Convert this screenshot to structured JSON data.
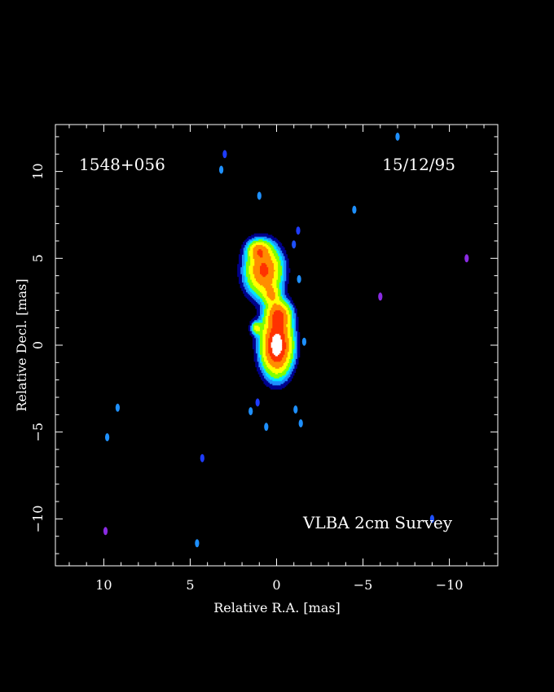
{
  "chart_data": {
    "type": "heatmap",
    "title": "",
    "source_name": "1548+056",
    "date": "15/12/95",
    "survey": "VLBA 2cm Survey",
    "xlabel": "Relative R.A. [mas]",
    "ylabel": "Relative Decl. [mas]",
    "xlim": [
      12.8,
      -12.8
    ],
    "ylim": [
      -12.7,
      12.7
    ],
    "x_reversed": true,
    "x_ticks": [
      10,
      5,
      0,
      -5,
      -10
    ],
    "y_ticks": [
      -10,
      -5,
      0,
      5,
      10
    ],
    "x_tick_labels": [
      "10",
      "5",
      "0",
      "−5",
      "−10"
    ],
    "y_tick_labels": [
      "−10",
      "−5",
      "0",
      "5",
      "10"
    ],
    "minor_tick_step": 1,
    "grid": false,
    "colormap": [
      "#00008b",
      "#1e90ff",
      "#00e5ff",
      "#7fff00",
      "#ffff00",
      "#ff8c00",
      "#ff3300",
      "#ffffff"
    ],
    "components": [
      {
        "name": "core",
        "x": 0.0,
        "y": 0.0,
        "sigma_x": 0.55,
        "sigma_y": 1.05,
        "peak": 1.0
      },
      {
        "name": "core-extension",
        "x": -0.1,
        "y": 1.8,
        "sigma_x": 0.45,
        "sigma_y": 0.5,
        "peak": 0.55
      },
      {
        "name": "jet-blob",
        "x": 0.75,
        "y": 4.3,
        "sigma_x": 0.65,
        "sigma_y": 0.9,
        "peak": 0.7
      },
      {
        "name": "jet-tail",
        "x": 1.05,
        "y": 5.5,
        "sigma_x": 0.4,
        "sigma_y": 0.35,
        "peak": 0.4
      },
      {
        "name": "bridge",
        "x": 0.3,
        "y": 2.9,
        "sigma_x": 0.3,
        "sigma_y": 0.35,
        "peak": 0.32
      },
      {
        "name": "west-knot",
        "x": 1.2,
        "y": 1.0,
        "sigma_x": 0.2,
        "sigma_y": 0.25,
        "peak": 0.3
      }
    ],
    "noise_spots": [
      {
        "x": 3.2,
        "y": 10.1,
        "c": "#1e90ff"
      },
      {
        "x": 3.0,
        "y": 11.0,
        "c": "#1e3cff"
      },
      {
        "x": 1.0,
        "y": 8.6,
        "c": "#1e90ff"
      },
      {
        "x": -7.0,
        "y": 12.0,
        "c": "#1e90ff"
      },
      {
        "x": -4.5,
        "y": 7.8,
        "c": "#1e90ff"
      },
      {
        "x": -1.0,
        "y": 5.8,
        "c": "#1e50ff"
      },
      {
        "x": -1.25,
        "y": 6.6,
        "c": "#1e3cff"
      },
      {
        "x": -1.3,
        "y": 3.8,
        "c": "#1e90ff"
      },
      {
        "x": -1.6,
        "y": 0.2,
        "c": "#1e90ff"
      },
      {
        "x": -6.0,
        "y": 2.8,
        "c": "#8a2be2"
      },
      {
        "x": -11.0,
        "y": 5.0,
        "c": "#8a2be2"
      },
      {
        "x": 1.5,
        "y": -3.8,
        "c": "#1e90ff"
      },
      {
        "x": 1.1,
        "y": -3.3,
        "c": "#1e3cff"
      },
      {
        "x": -1.1,
        "y": -3.7,
        "c": "#1e90ff"
      },
      {
        "x": -1.4,
        "y": -4.5,
        "c": "#1e90ff"
      },
      {
        "x": 0.6,
        "y": -4.7,
        "c": "#1e90ff"
      },
      {
        "x": 9.2,
        "y": -3.6,
        "c": "#1e90ff"
      },
      {
        "x": 9.8,
        "y": -5.3,
        "c": "#1e90ff"
      },
      {
        "x": 4.3,
        "y": -6.5,
        "c": "#1e3cff"
      },
      {
        "x": 4.6,
        "y": -11.4,
        "c": "#1e90ff"
      },
      {
        "x": 9.9,
        "y": -10.7,
        "c": "#8a2be2"
      },
      {
        "x": -9.0,
        "y": -10.0,
        "c": "#1e50ff"
      }
    ]
  }
}
